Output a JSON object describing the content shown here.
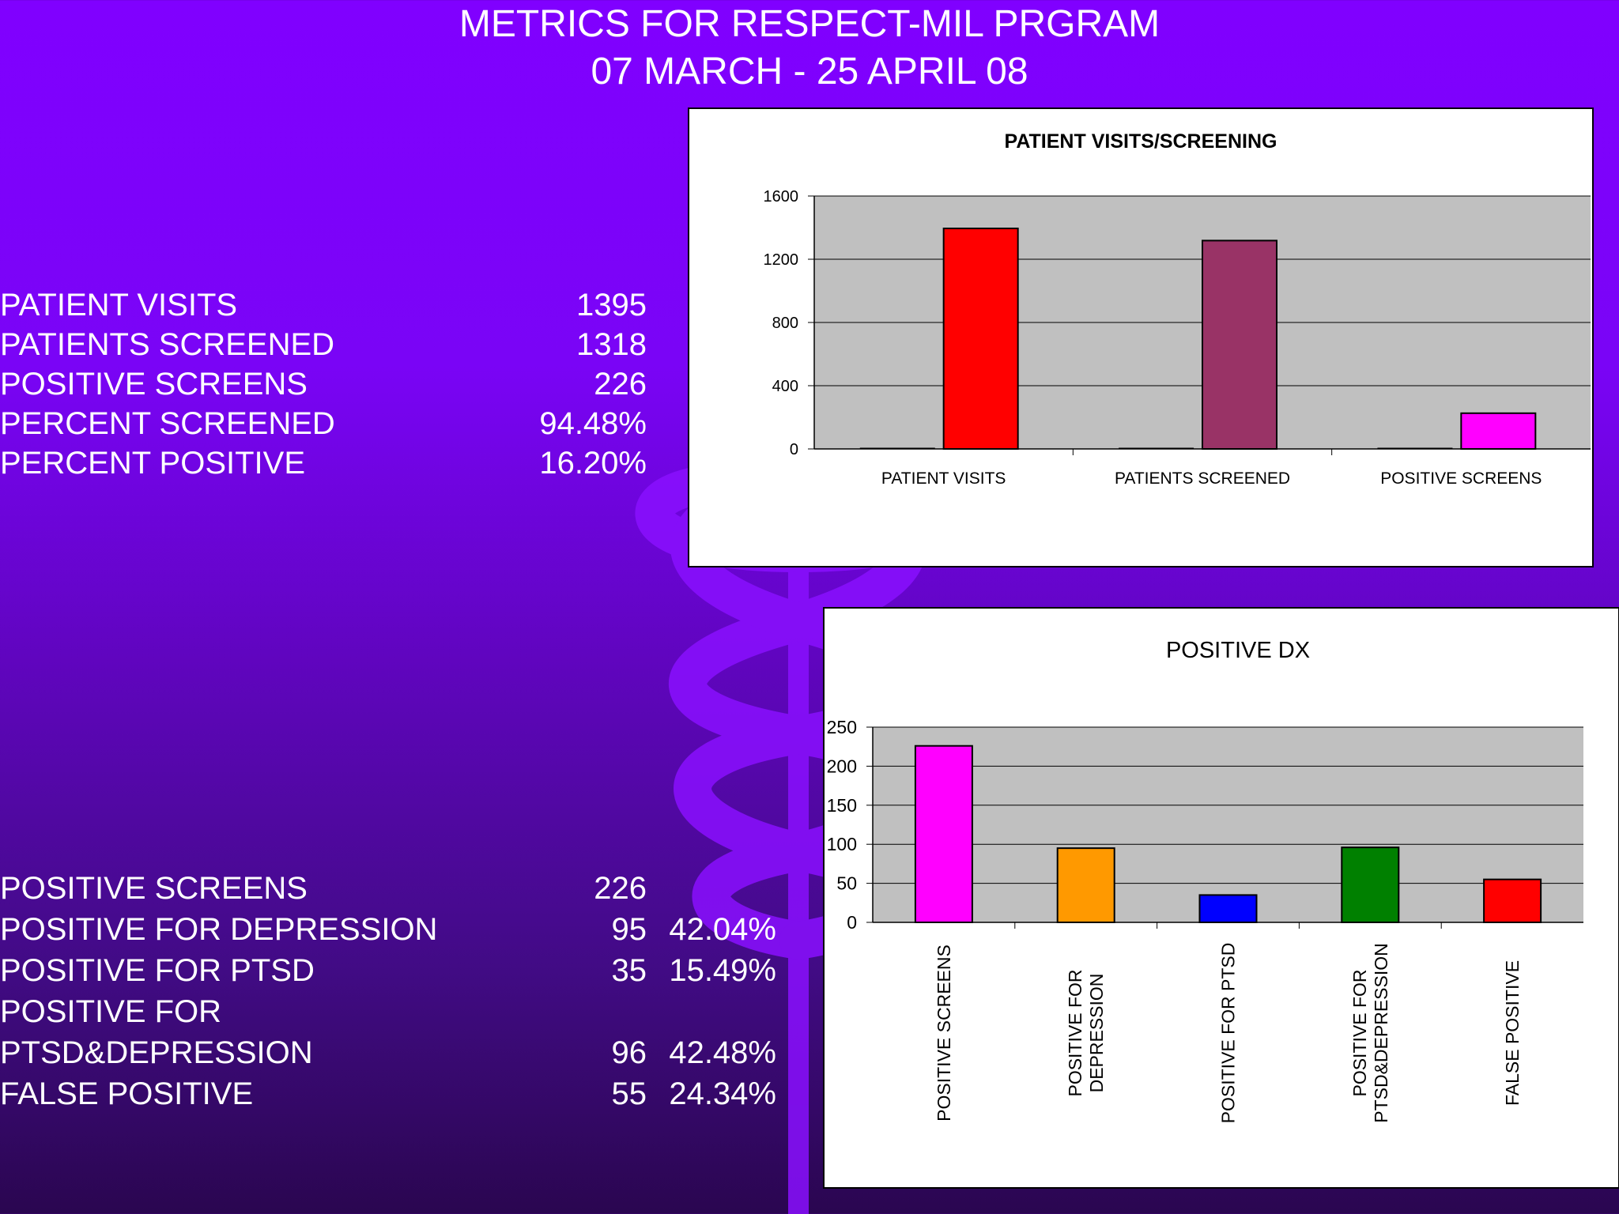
{
  "slide": {
    "title_line1": "METRICS FOR RESPECT-MIL PRGRAM",
    "title_line2": "07 MARCH - 25 APRIL 08"
  },
  "colors": {
    "background_top": "#8000ff",
    "background_bottom": "#2a0650",
    "plot_area": "#c0c0c0"
  },
  "summary_stats": [
    {
      "label": "PATIENT VISITS",
      "value": "1395"
    },
    {
      "label": "PATIENTS SCREENED",
      "value": "1318"
    },
    {
      "label": "POSITIVE SCREENS",
      "value": "226"
    },
    {
      "label": "PERCENT SCREENED",
      "value": "94.48%"
    },
    {
      "label": "PERCENT POSITIVE",
      "value": "16.20%"
    }
  ],
  "dx_stats": [
    {
      "label": "POSITIVE SCREENS",
      "value": "226",
      "percent": ""
    },
    {
      "label": "POSITIVE FOR DEPRESSION",
      "value": "95",
      "percent": "42.04%"
    },
    {
      "label": "POSITIVE FOR PTSD",
      "value": "35",
      "percent": "15.49%"
    },
    {
      "label": "POSITIVE FOR",
      "value": "",
      "percent": ""
    },
    {
      "label": "PTSD&DEPRESSION",
      "value": "96",
      "percent": "42.48%"
    },
    {
      "label": "FALSE POSITIVE",
      "value": "55",
      "percent": "24.34%"
    }
  ],
  "chart_data": [
    {
      "type": "bar",
      "title": "PATIENT VISITS/SCREENING",
      "categories": [
        "PATIENT VISITS",
        "PATIENTS SCREENED",
        "POSITIVE SCREENS"
      ],
      "series": [
        {
          "values": [
            0,
            0,
            0
          ],
          "color": "#000080"
        },
        {
          "values": [
            1395,
            1318,
            226
          ],
          "colors": [
            "#ff0000",
            "#993366",
            "#ff00ff"
          ]
        }
      ],
      "ylim": [
        0,
        1600
      ],
      "yticks": [
        0,
        400,
        800,
        1200,
        1600
      ],
      "grid": true,
      "legend": "none"
    },
    {
      "type": "bar",
      "title": "POSITIVE DX",
      "categories": [
        "POSITIVE SCREENS",
        "POSITIVE FOR DEPRESSION",
        "POSITIVE FOR PTSD",
        "POSITIVE FOR PTSD&DEPRESSION",
        "FALSE POSITIVE"
      ],
      "category_label_lines": [
        [
          "POSITIVE SCREENS"
        ],
        [
          "POSITIVE FOR",
          "DEPRESSION"
        ],
        [
          "POSITIVE FOR PTSD"
        ],
        [
          "POSITIVE FOR",
          "PTSD&DEPRESSION"
        ],
        [
          "FALSE POSITIVE"
        ]
      ],
      "values": [
        226,
        95,
        35,
        96,
        55
      ],
      "colors": [
        "#ff00ff",
        "#ff9900",
        "#0000ff",
        "#008000",
        "#ff0000"
      ],
      "ylim": [
        0,
        250
      ],
      "yticks": [
        0,
        50,
        100,
        150,
        200,
        250
      ],
      "grid": true,
      "legend": "none"
    }
  ]
}
